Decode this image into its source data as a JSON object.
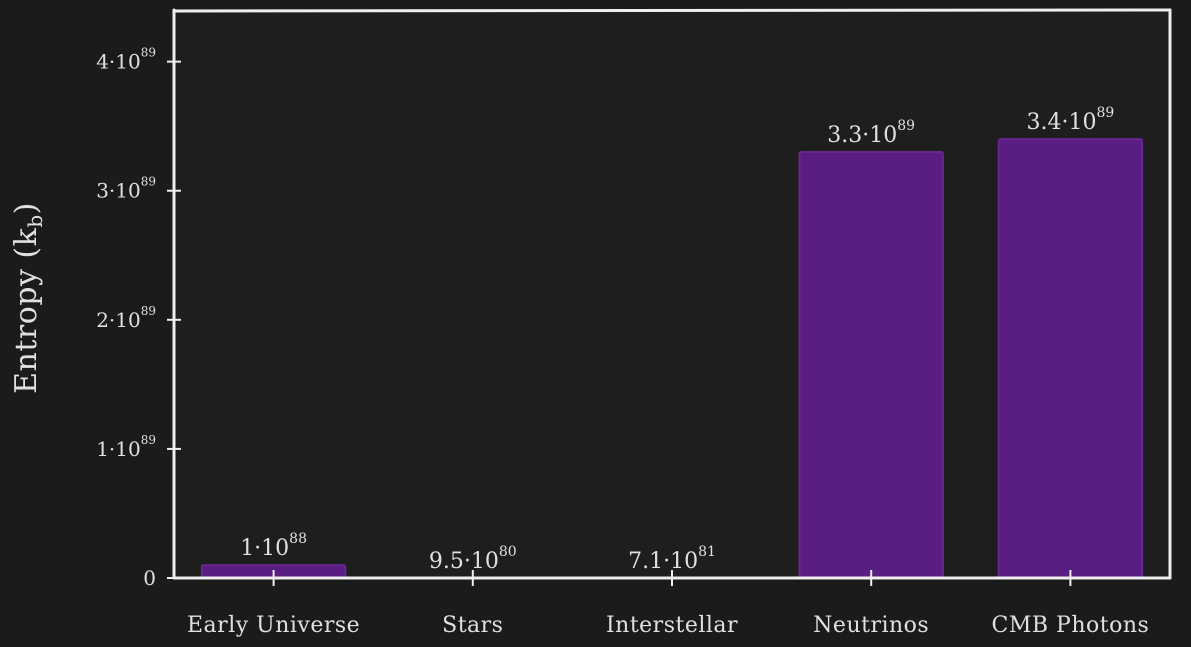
{
  "colors": {
    "background": "#1b1b1b",
    "plot_background": "#1e1e1e",
    "bar_fill": "#5a1d82",
    "axis": "#eeeeee",
    "text": "#e0e0e0"
  },
  "chart_data": {
    "type": "bar",
    "title": "",
    "xlabel": "",
    "ylabel": "Entropy (k_b)",
    "ylabel_parts": {
      "main": "Entropy (k",
      "sub": "b",
      "close": ")"
    },
    "ylim": [
      0,
      4.4e+89
    ],
    "grid": false,
    "legend": "none",
    "categories": [
      "Early Universe",
      "Stars",
      "Interstellar",
      "Neutrinos",
      "CMB Photons"
    ],
    "values": [
      1e+88,
      9.5e+80,
      7.1e+81,
      3.3e+89,
      3.4e+89
    ],
    "value_labels": [
      {
        "mant": "1·10",
        "exp": "88"
      },
      {
        "mant": "9.5·10",
        "exp": "80"
      },
      {
        "mant": "7.1·10",
        "exp": "81"
      },
      {
        "mant": "3.3·10",
        "exp": "89"
      },
      {
        "mant": "3.4·10",
        "exp": "89"
      }
    ],
    "yticks": [
      {
        "value": 0,
        "mant": "0",
        "exp": ""
      },
      {
        "value": 1e+89,
        "mant": "1·10",
        "exp": "89"
      },
      {
        "value": 2e+89,
        "mant": "2·10",
        "exp": "89"
      },
      {
        "value": 3e+89,
        "mant": "3·10",
        "exp": "89"
      },
      {
        "value": 4e+89,
        "mant": "4·10",
        "exp": "89"
      }
    ]
  }
}
